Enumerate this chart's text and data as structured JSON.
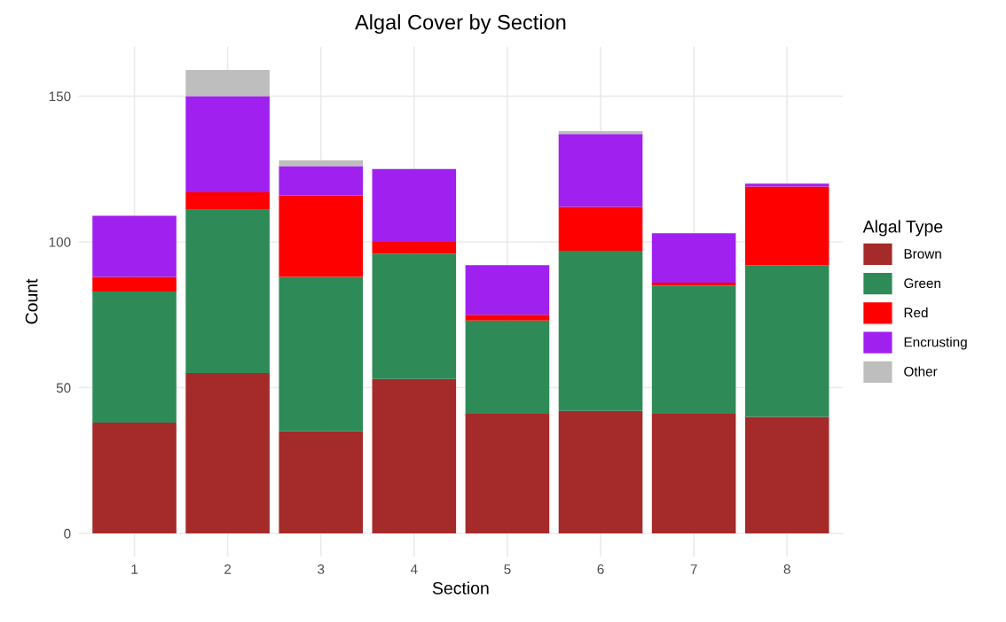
{
  "chart_data": {
    "type": "bar",
    "title": "Algal Cover by Section",
    "xlabel": "Section",
    "ylabel": "Count",
    "legend_title": "Algal Type",
    "categories": [
      "1",
      "2",
      "3",
      "4",
      "5",
      "6",
      "7",
      "8"
    ],
    "stacked": true,
    "series": [
      {
        "name": "Brown",
        "color": "#a52a2a",
        "values": [
          38,
          55,
          35,
          53,
          41,
          42,
          41,
          40
        ]
      },
      {
        "name": "Green",
        "color": "#2e8b57",
        "values": [
          45,
          56,
          53,
          43,
          32,
          55,
          44,
          52
        ]
      },
      {
        "name": "Red",
        "color": "#ff0000",
        "values": [
          5,
          6,
          28,
          4,
          2,
          15,
          1,
          27
        ]
      },
      {
        "name": "Encrusting",
        "color": "#a020f0",
        "values": [
          21,
          33,
          10,
          25,
          17,
          25,
          17,
          1
        ]
      },
      {
        "name": "Other",
        "color": "#bebebe",
        "values": [
          0,
          9,
          2,
          0,
          0,
          1,
          0,
          0
        ]
      }
    ],
    "ylim": [
      -8,
      167
    ],
    "yticks": [
      0,
      50,
      100,
      150
    ],
    "grid": true,
    "legend": "right"
  }
}
